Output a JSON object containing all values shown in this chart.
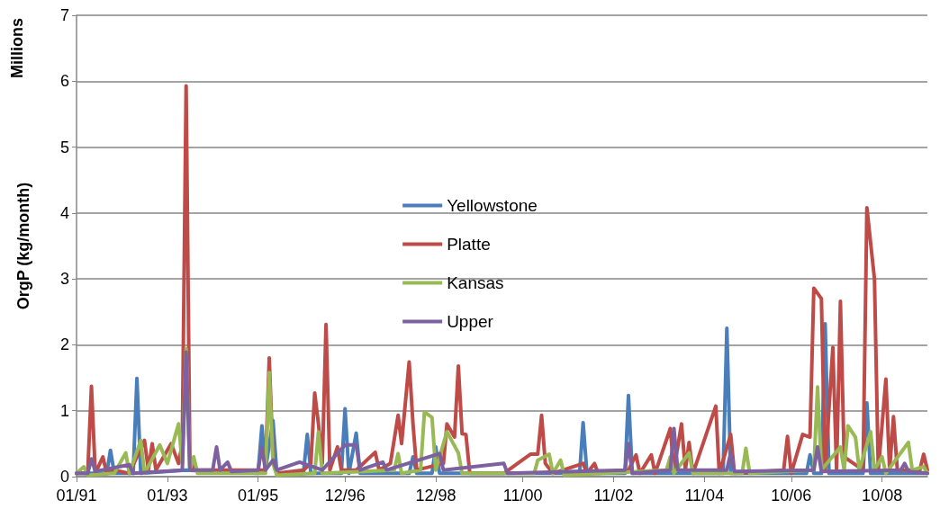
{
  "chart_data": {
    "type": "line",
    "ylabel": "OrgP (kg/month)",
    "annotations": [
      "Millions"
    ],
    "xlim": [
      "1991-01",
      "2009-10"
    ],
    "xticks": [
      {
        "value": "1991-01",
        "label": "01/91"
      },
      {
        "value": "1993-01",
        "label": "01/93"
      },
      {
        "value": "1995-01",
        "label": "01/95"
      },
      {
        "value": "1996-12",
        "label": "12/96"
      },
      {
        "value": "1998-12",
        "label": "12/98"
      },
      {
        "value": "2000-11",
        "label": "11/00"
      },
      {
        "value": "2002-11",
        "label": "11/02"
      },
      {
        "value": "2004-11",
        "label": "11/04"
      },
      {
        "value": "2006-10",
        "label": "10/06"
      },
      {
        "value": "2008-10",
        "label": "10/08"
      }
    ],
    "ylim": [
      0,
      7
    ],
    "yticks": [
      0,
      1,
      2,
      3,
      4,
      5,
      6,
      7
    ],
    "grid": "y",
    "legend": "center",
    "marker": "none",
    "line_style": "solid",
    "series": [
      {
        "name": "Yellowstone",
        "color": "#4a7ebb",
        "x": [
          "1991-01",
          "1991-09",
          "1991-10",
          "1991-11",
          "1992-04",
          "1992-05",
          "1992-06",
          "1993-06",
          "1995-01",
          "1995-02",
          "1995-03",
          "1995-05",
          "1995-06",
          "1996-01",
          "1996-02",
          "1996-03",
          "1996-11",
          "1996-12",
          "1997-01",
          "1997-03",
          "1997-04",
          "1998-05",
          "1998-06",
          "1998-07",
          "1998-11",
          "1998-12",
          "1999-01",
          "2002-02",
          "2002-03",
          "2002-04",
          "2003-02",
          "2003-03",
          "2003-04",
          "2005-04",
          "2005-05",
          "2005-06",
          "2007-02",
          "2007-03",
          "2007-04",
          "2007-06",
          "2007-07",
          "2007-08",
          "2008-05",
          "2008-06",
          "2008-07",
          "2009-10"
        ],
        "values": [
          0.05,
          0.05,
          0.4,
          0.05,
          0.05,
          1.49,
          0.05,
          0.1,
          0.05,
          0.77,
          0.1,
          0.85,
          0.05,
          0.05,
          0.64,
          0.05,
          0.05,
          1.03,
          0.05,
          0.66,
          0.05,
          0.05,
          0.3,
          0.05,
          0.05,
          0.45,
          0.05,
          0.05,
          0.82,
          0.05,
          0.05,
          1.23,
          0.05,
          0.05,
          2.25,
          0.05,
          0.05,
          0.33,
          0.05,
          0.05,
          2.32,
          0.05,
          0.05,
          1.12,
          0.05,
          0.05
        ]
      },
      {
        "name": "Platte",
        "color": "#be4b48",
        "x": [
          "1991-01",
          "1991-04",
          "1991-05",
          "1991-06",
          "1991-08",
          "1991-09",
          "1991-11",
          "1992-03",
          "1992-07",
          "1992-08",
          "1992-09",
          "1992-10",
          "1993-02",
          "1993-04",
          "1993-05",
          "1993-06",
          "1993-07",
          "1993-08",
          "1994-01",
          "1994-09",
          "1995-03",
          "1995-04",
          "1995-05",
          "1995-06",
          "1996-01",
          "1996-03",
          "1996-04",
          "1996-05",
          "1996-06",
          "1996-07",
          "1996-08",
          "1996-10",
          "1996-11",
          "1997-03",
          "1997-08",
          "1997-09",
          "1997-12",
          "1998-02",
          "1998-03",
          "1998-05",
          "1998-06",
          "1998-07",
          "1999-02",
          "1999-03",
          "1999-05",
          "1999-06",
          "1999-07",
          "1999-08",
          "1999-09",
          "2000-06",
          "2001-01",
          "2001-03",
          "2001-04",
          "2001-05",
          "2001-07",
          "2002-03",
          "2002-04",
          "2002-06",
          "2002-07",
          "2003-03",
          "2003-05",
          "2003-06",
          "2003-09",
          "2003-10",
          "2004-02",
          "2004-03",
          "2004-05",
          "2004-06",
          "2004-07",
          "2004-08",
          "2005-02",
          "2005-03",
          "2005-06",
          "2005-07",
          "2006-08",
          "2006-09",
          "2006-10",
          "2007-01",
          "2007-03",
          "2007-04",
          "2007-06",
          "2007-07",
          "2007-09",
          "2007-10",
          "2007-11",
          "2007-12",
          "2008-05",
          "2008-06",
          "2008-08",
          "2008-09",
          "2008-11",
          "2008-12",
          "2009-01",
          "2009-02",
          "2009-08",
          "2009-09",
          "2009-10"
        ],
        "values": [
          0.05,
          0.05,
          1.37,
          0.05,
          0.3,
          0.05,
          0.1,
          0.05,
          0.55,
          0.1,
          0.5,
          0.1,
          0.5,
          0.2,
          0.5,
          5.93,
          0.3,
          0.1,
          0.1,
          0.1,
          0.1,
          1.8,
          0.3,
          0.05,
          0.1,
          0.2,
          1.27,
          0.8,
          0.2,
          2.31,
          0.1,
          0.45,
          0.1,
          0.1,
          0.37,
          0.1,
          0.2,
          0.93,
          0.5,
          1.74,
          0.8,
          0.1,
          0.2,
          0.8,
          0.6,
          1.68,
          0.65,
          0.64,
          0.05,
          0.05,
          0.34,
          0.34,
          0.93,
          0.2,
          0.05,
          0.2,
          0.05,
          0.2,
          0.05,
          0.1,
          0.33,
          0.05,
          0.33,
          0.05,
          0.73,
          0.1,
          0.8,
          0.1,
          0.52,
          0.05,
          1.07,
          0.05,
          0.64,
          0.05,
          0.1,
          0.61,
          0.05,
          0.64,
          0.6,
          2.86,
          2.7,
          0.1,
          1.96,
          0.1,
          2.66,
          0.3,
          0.1,
          4.08,
          3.0,
          0.1,
          1.48,
          0.1,
          0.91,
          0.1,
          0.1,
          0.34,
          0.1
        ]
      },
      {
        "name": "Kansas",
        "color": "#98b954",
        "x": [
          "1991-01",
          "1991-03",
          "1991-04",
          "1991-11",
          "1992-02",
          "1992-03",
          "1992-06",
          "1992-07",
          "1992-11",
          "1993-01",
          "1993-04",
          "1993-05",
          "1993-06",
          "1993-07",
          "1993-08",
          "1993-09",
          "1995-03",
          "1995-04",
          "1995-05",
          "1995-06",
          "1996-04",
          "1996-05",
          "1996-06",
          "1998-01",
          "1998-02",
          "1998-03",
          "1998-08",
          "1998-09",
          "1998-11",
          "1998-12",
          "1999-03",
          "1999-06",
          "1999-07",
          "2001-02",
          "2001-03",
          "2001-06",
          "2001-07",
          "2001-09",
          "2001-10",
          "2004-01",
          "2004-02",
          "2004-03",
          "2004-07",
          "2004-08",
          "2005-09",
          "2005-10",
          "2005-11",
          "2007-04",
          "2007-05",
          "2007-06",
          "2007-11",
          "2007-12",
          "2008-01",
          "2008-03",
          "2008-04",
          "2008-07",
          "2008-08",
          "2008-10",
          "2008-11",
          "2009-05",
          "2009-06",
          "2009-09",
          "2009-10"
        ],
        "values": [
          0.05,
          0.15,
          0.02,
          0.05,
          0.36,
          0.05,
          0.55,
          0.05,
          0.48,
          0.2,
          0.8,
          0.2,
          1.94,
          0.1,
          0.3,
          0.05,
          0.05,
          1.58,
          0.2,
          0.02,
          0.05,
          0.68,
          0.05,
          0.1,
          0.35,
          0.05,
          0.1,
          0.98,
          0.9,
          0.1,
          0.68,
          0.36,
          0.05,
          0.05,
          0.25,
          0.34,
          0.05,
          0.25,
          0.02,
          0.1,
          0.3,
          0.05,
          0.36,
          0.05,
          0.05,
          0.43,
          0.05,
          0.1,
          1.36,
          0.1,
          0.45,
          0.1,
          0.77,
          0.6,
          0.1,
          0.68,
          0.1,
          0.3,
          0.05,
          0.52,
          0.1,
          0.15,
          0.05
        ]
      },
      {
        "name": "Upper",
        "color": "#7d60a0",
        "x": [
          "1991-01",
          "1991-04",
          "1991-05",
          "1991-06",
          "1992-03",
          "1992-04",
          "1993-05",
          "1993-06",
          "1993-07",
          "1994-01",
          "1994-02",
          "1994-03",
          "1994-05",
          "1994-06",
          "1995-01",
          "1995-02",
          "1995-03",
          "1995-05",
          "1995-06",
          "1995-12",
          "1996-06",
          "1996-12",
          "1997-03",
          "1997-04",
          "1997-10",
          "1997-11",
          "1999-01",
          "1999-02",
          "2000-06",
          "2000-07",
          "2003-02",
          "2003-03",
          "2003-04",
          "2004-02",
          "2004-03",
          "2004-04",
          "2005-05",
          "2005-06",
          "2005-07",
          "2007-04",
          "2007-05",
          "2007-06",
          "2009-03",
          "2009-04",
          "2009-05",
          "2009-10"
        ],
        "values": [
          0.05,
          0.05,
          0.27,
          0.08,
          0.18,
          0.05,
          0.1,
          1.89,
          0.1,
          0.1,
          0.45,
          0.1,
          0.22,
          0.08,
          0.1,
          0.45,
          0.1,
          0.25,
          0.1,
          0.22,
          0.1,
          0.48,
          0.48,
          0.1,
          0.22,
          0.1,
          0.35,
          0.1,
          0.2,
          0.05,
          0.1,
          0.5,
          0.05,
          0.1,
          0.73,
          0.1,
          0.1,
          0.36,
          0.08,
          0.1,
          0.45,
          0.08,
          0.1,
          0.2,
          0.08,
          0.05
        ]
      }
    ]
  }
}
